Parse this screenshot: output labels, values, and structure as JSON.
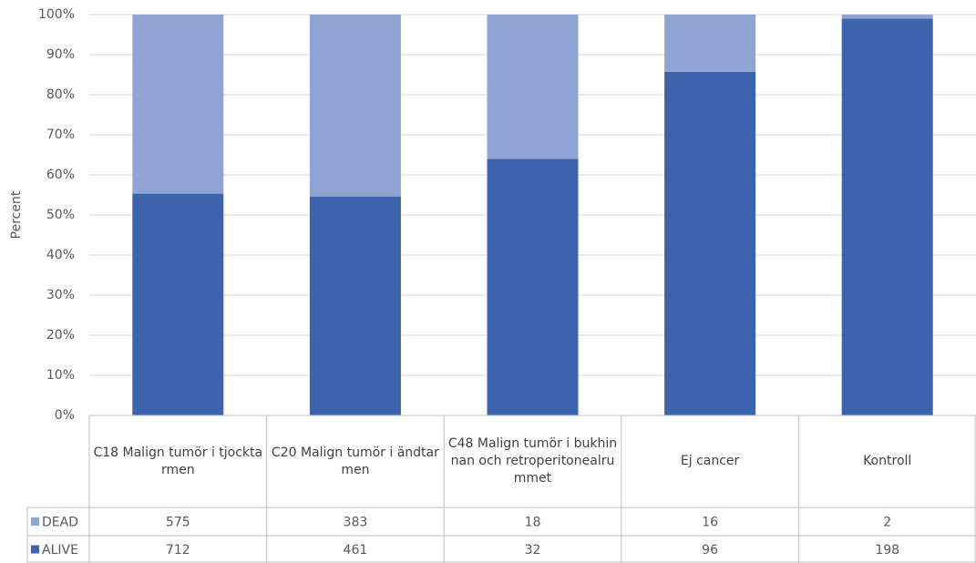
{
  "chart_data": {
    "type": "bar",
    "stacking": "percent",
    "y_label": "Percent",
    "categories": [
      "C18 Malign tumör i tjocktarmen",
      "C20 Malign tumör i ändtarmen",
      "C48 Malign tumör i bukhinnan och retroperitonealrummet",
      "Ej cancer",
      "Kontroll"
    ],
    "series": [
      {
        "name": "DEAD",
        "color": "#8fa4d4",
        "values": [
          575,
          383,
          18,
          16,
          2
        ]
      },
      {
        "name": "ALIVE",
        "color": "#3c63ac",
        "values": [
          712,
          461,
          32,
          96,
          198
        ]
      }
    ],
    "ylim": [
      0,
      100
    ],
    "yticks": [
      {
        "value": 0,
        "label": "0%"
      },
      {
        "value": 10,
        "label": "10%"
      },
      {
        "value": 20,
        "label": "20%"
      },
      {
        "value": 30,
        "label": "30%"
      },
      {
        "value": 40,
        "label": "40%"
      },
      {
        "value": 50,
        "label": "50%"
      },
      {
        "value": 60,
        "label": "60%"
      },
      {
        "value": 70,
        "label": "70%"
      },
      {
        "value": 80,
        "label": "80%"
      },
      {
        "value": 90,
        "label": "90%"
      },
      {
        "value": 100,
        "label": "100%"
      }
    ],
    "grid": true
  }
}
